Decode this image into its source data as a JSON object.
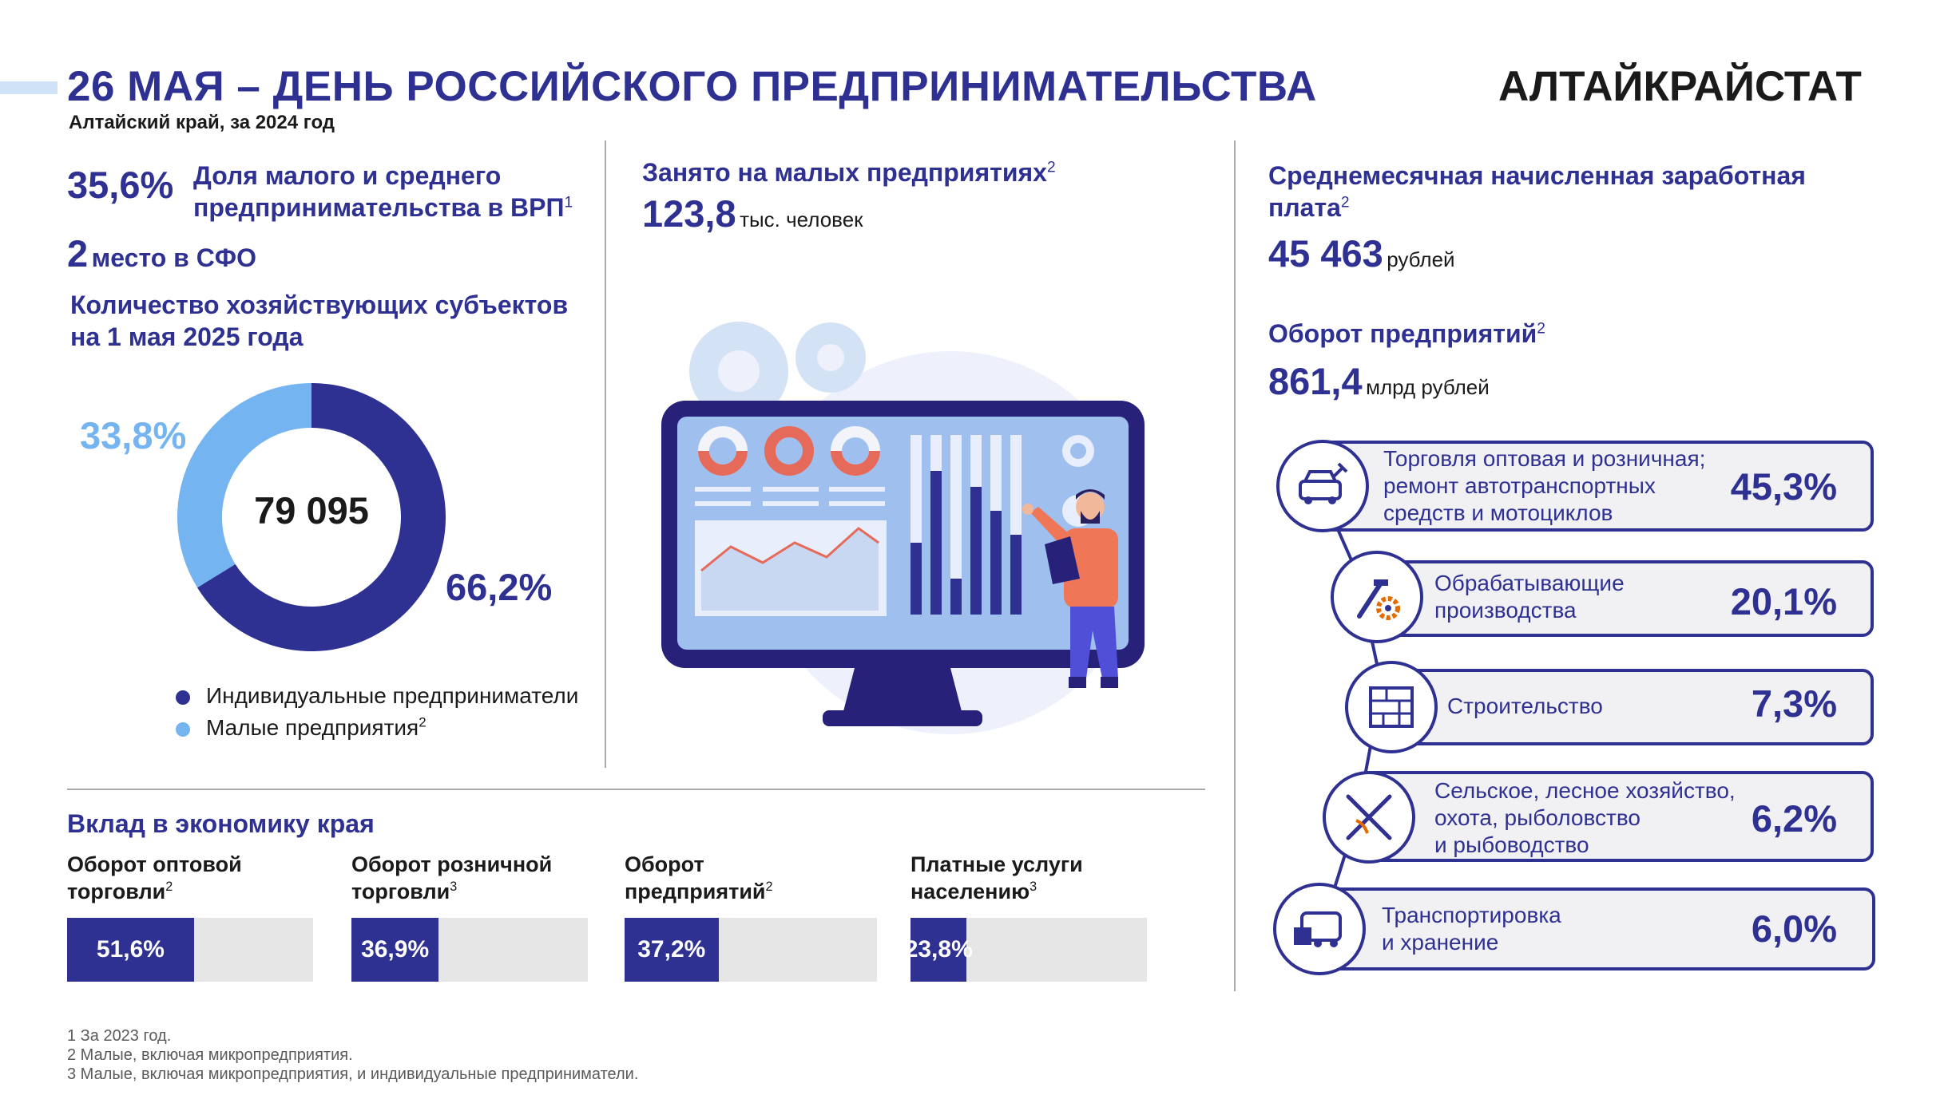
{
  "header": {
    "title": "26 МАЯ – ДЕНЬ РОССИЙСКОГО ПРЕДПРИНИМАТЕЛЬСТВА",
    "brand": "АЛТАЙКРАЙСТАТ",
    "subtitle": "Алтайский край, за 2024 год"
  },
  "left": {
    "share_value": "35,6%",
    "share_label_1": "Доля малого и среднего",
    "share_label_2": "предпринимательства в ВРП",
    "share_note": "1",
    "rank_value": "2",
    "rank_label": "место в СФО",
    "entities_title_1": "Количество хозяйствующих субъектов",
    "entities_title_2": "на 1 мая 2025 года",
    "donut_center": "79 095",
    "pct_small": "33,8%",
    "pct_ip": "66,2%",
    "legend_ip": "Индивидуальные предприниматели",
    "legend_small": "Малые предприятия",
    "legend_small_note": "2"
  },
  "middle": {
    "employed_title": "Занято на малых предприятиях",
    "employed_note": "2",
    "employed_value": "123,8",
    "employed_unit": "тыс. человек"
  },
  "right": {
    "salary_title_1": "Среднемесячная начисленная заработная",
    "salary_title_2": "плата",
    "salary_note": "2",
    "salary_value": "45 463",
    "salary_unit": "рублей",
    "turnover_title": "Оборот предприятий",
    "turnover_note": "2",
    "turnover_value": "861,4",
    "turnover_unit": "млрд рублей"
  },
  "industries": [
    {
      "line1": "Торговля оптовая и розничная;",
      "line2": "ремонт автотранспортных",
      "line3": "средств и мотоциклов",
      "value": "45,3%",
      "icon": "car-repair-icon"
    },
    {
      "line1": "Обрабатывающие",
      "line2": "производства",
      "line3": "",
      "value": "20,1%",
      "icon": "tools-gear-icon"
    },
    {
      "line1": "Строительство",
      "line2": "",
      "line3": "",
      "value": "7,3%",
      "icon": "bricks-icon"
    },
    {
      "line1": "Сельское, лесное хозяйство,",
      "line2": "охота, рыболовство",
      "line3": "и рыбоводство",
      "value": "6,2%",
      "icon": "fishing-rod-icon"
    },
    {
      "line1": "Транспортировка",
      "line2": "и хранение",
      "line3": "",
      "value": "6,0%",
      "icon": "bus-icon"
    }
  ],
  "contribution": {
    "title": "Вклад в экономику края",
    "items": [
      {
        "label1": "Оборот оптовой",
        "label2": "торговли",
        "note": "2",
        "value_text": "51,6%"
      },
      {
        "label1": "Оборот розничной",
        "label2": "торговли",
        "note": "3",
        "value_text": "36,9%"
      },
      {
        "label1": "Оборот",
        "label2": "предприятий",
        "note": "2",
        "value_text": "37,2%"
      },
      {
        "label1": "Платные услуги",
        "label2": "населению",
        "note": "3",
        "value_text": "23,8%"
      }
    ]
  },
  "footnotes": [
    "1 За 2023 год.",
    "2 Малые, включая микропредприятия.",
    "3 Малые, включая микропредприятия, и индивидуальные предприниматели."
  ],
  "colors": {
    "navy": "#2e3192",
    "light_blue": "#74b4f0",
    "track": "#e6e6e6",
    "card_bg": "#f1f1f4"
  },
  "chart_data": [
    {
      "type": "pie",
      "title": "Количество хозяйствующих субъектов на 1 мая 2025 года",
      "center_label": "79 095",
      "categories": [
        "Индивидуальные предприниматели",
        "Малые предприятия"
      ],
      "values": [
        66.2,
        33.8
      ],
      "colors": [
        "#2e3192",
        "#74b4f0"
      ],
      "legend": "bottom"
    },
    {
      "type": "bar",
      "title": "Вклад в экономику края",
      "categories": [
        "Оборот оптовой торговли",
        "Оборот розничной торговли",
        "Оборот предприятий",
        "Платные услуги населению"
      ],
      "values": [
        51.6,
        36.9,
        37.2,
        23.8
      ],
      "ylim": [
        0,
        100
      ]
    },
    {
      "type": "table",
      "categories": [
        "Торговля оптовая и розничная; ремонт автотранспортных средств и мотоциклов",
        "Обрабатывающие производства",
        "Строительство",
        "Сельское, лесное хозяйство, охота, рыболовство и рыбоводство",
        "Транспортировка и хранение"
      ],
      "values": [
        45.3,
        20.1,
        7.3,
        6.2,
        6.0
      ]
    }
  ]
}
